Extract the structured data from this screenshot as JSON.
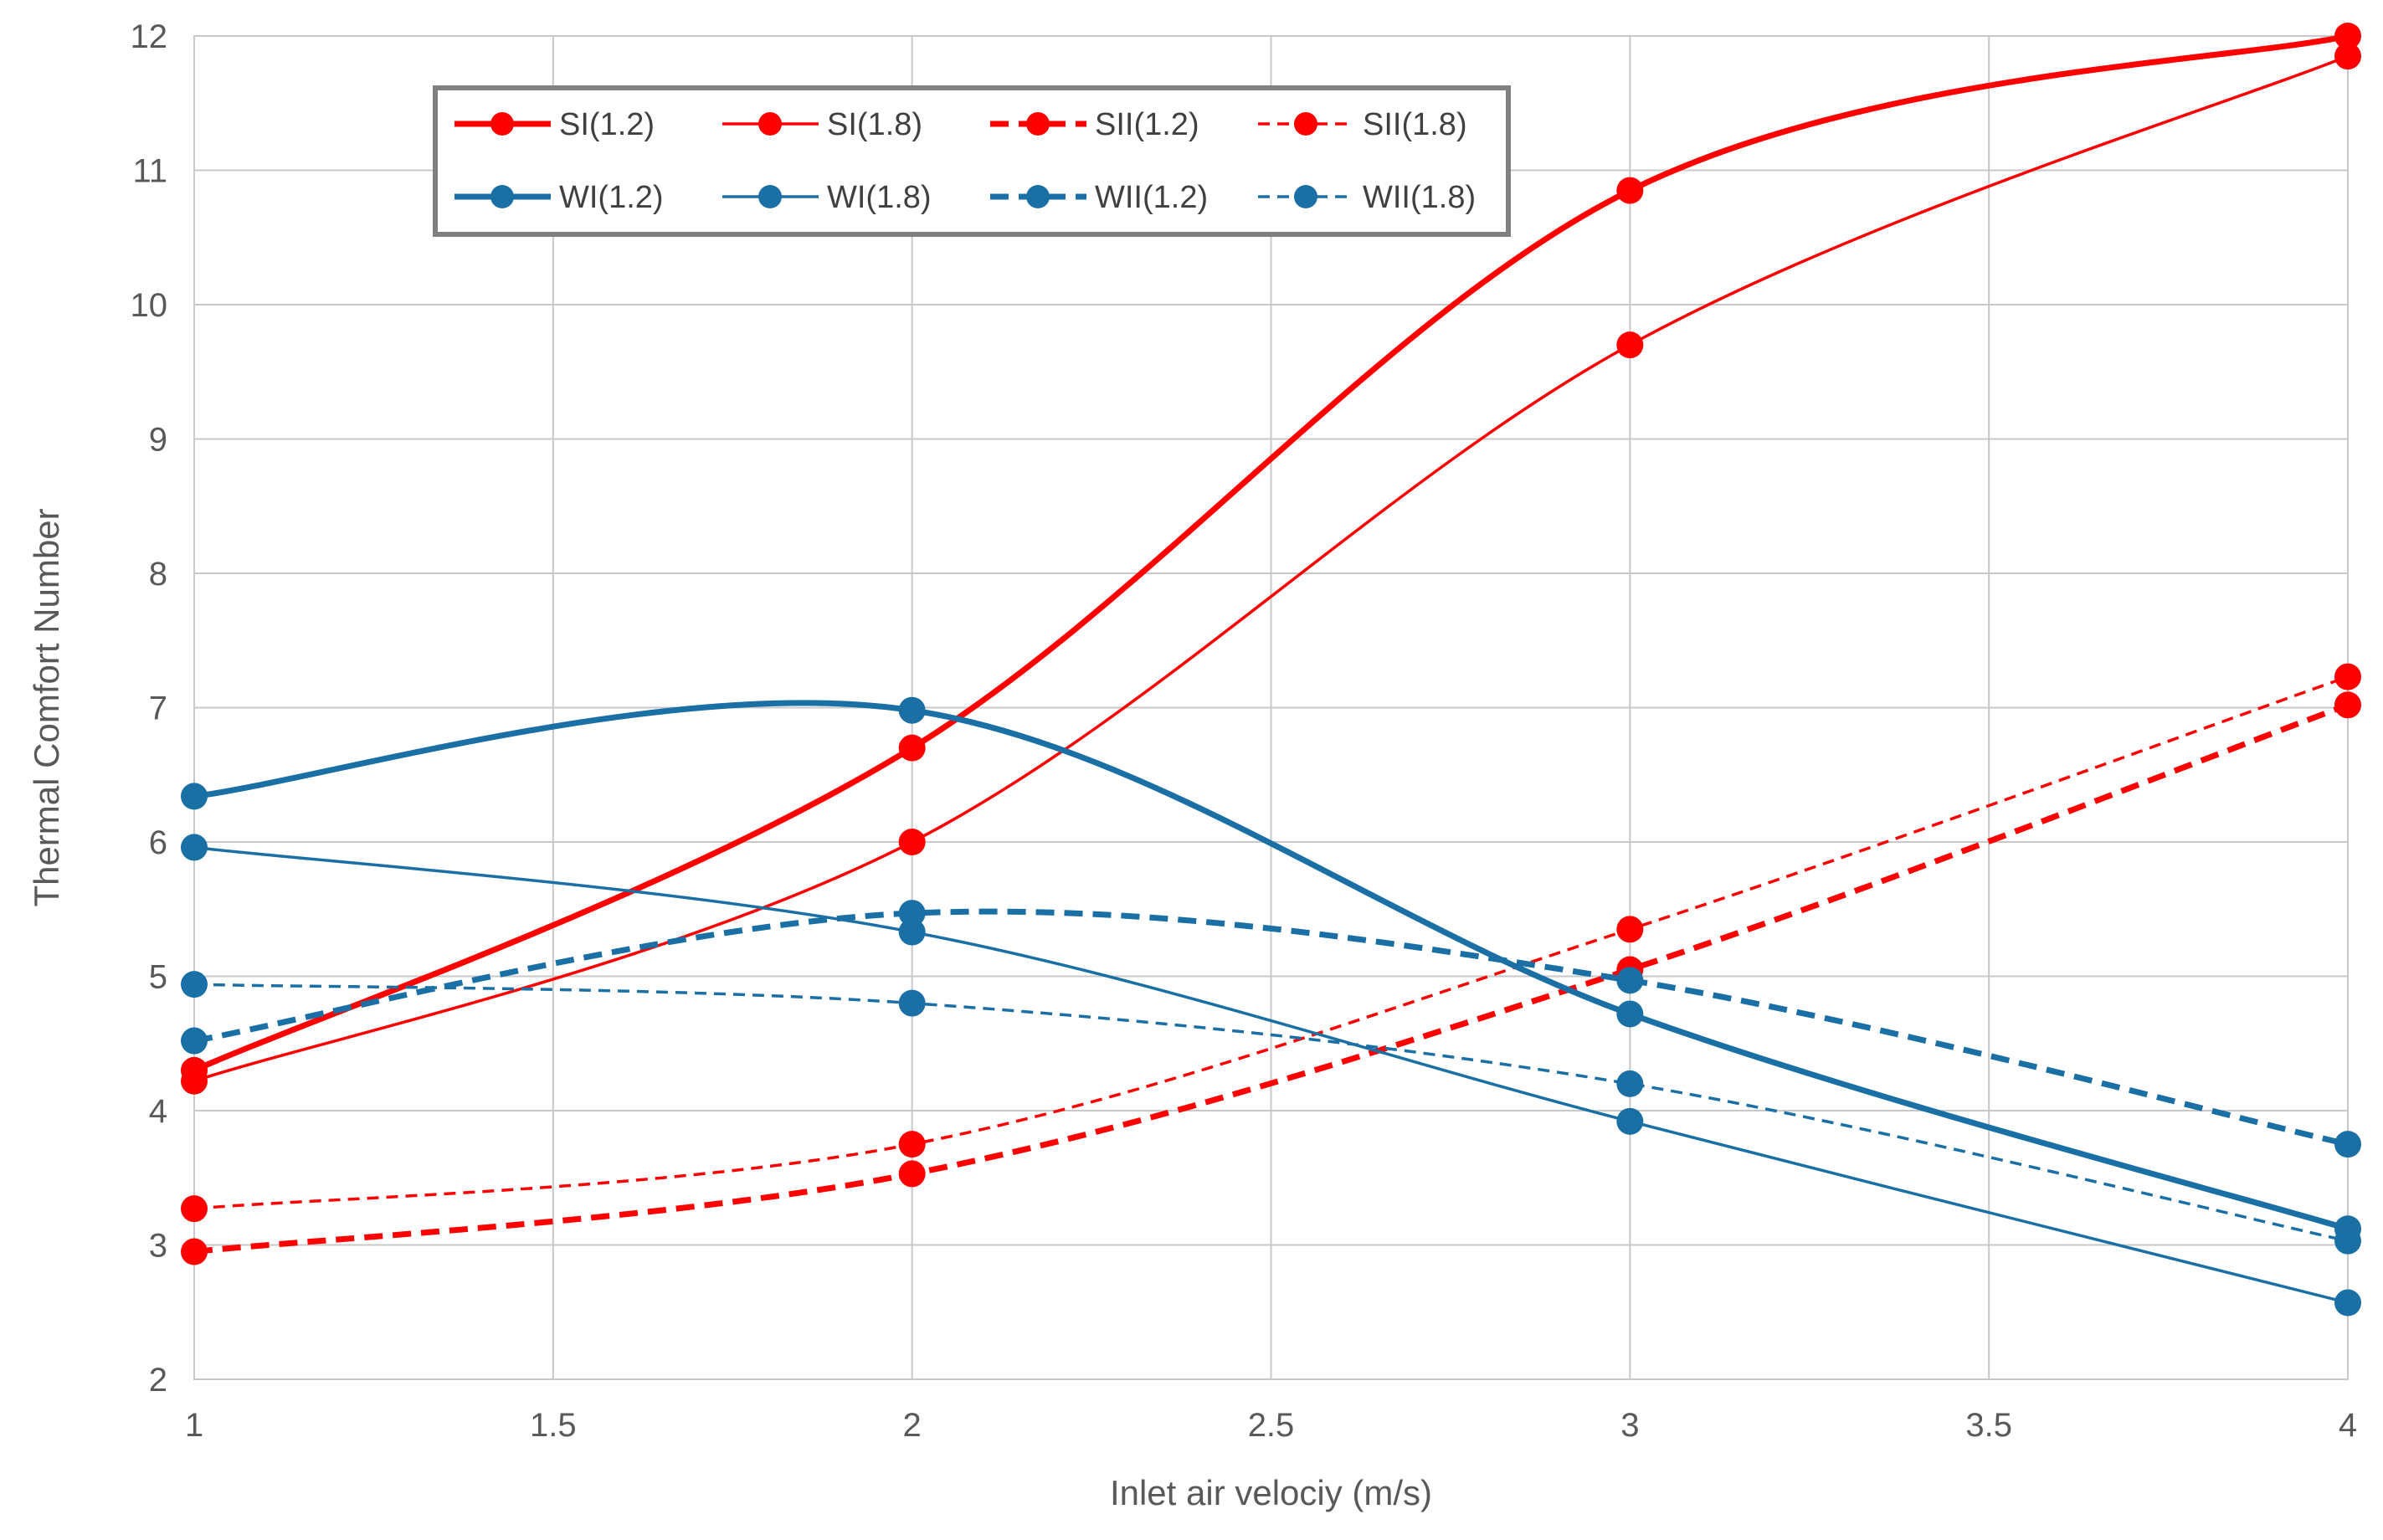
{
  "chart_data": {
    "type": "line",
    "title": "",
    "xlabel": "Inlet air velociy (m/s)",
    "ylabel": "Thermal Comfort Number",
    "x": [
      1,
      2,
      3,
      4
    ],
    "xlim": [
      1,
      4
    ],
    "ylim": [
      2,
      12
    ],
    "xticks": [
      "1",
      "1.5",
      "2",
      "2.5",
      "3",
      "3.5",
      "4"
    ],
    "yticks": [
      "2",
      "3",
      "4",
      "5",
      "6",
      "7",
      "8",
      "9",
      "10",
      "11",
      "12"
    ],
    "grid": true,
    "legend_position": "top-left",
    "series": [
      {
        "name": "SI(1.2)",
        "values": [
          4.3,
          6.7,
          10.85,
          12.0
        ],
        "color": "#ff0000",
        "width": "thick",
        "dash": "solid"
      },
      {
        "name": "SI(1.8)",
        "values": [
          4.22,
          6.0,
          9.7,
          11.85
        ],
        "color": "#ff0000",
        "width": "thin",
        "dash": "solid"
      },
      {
        "name": "SII(1.2)",
        "values": [
          2.95,
          3.53,
          5.05,
          7.02
        ],
        "color": "#ff0000",
        "width": "thick",
        "dash": "dashed"
      },
      {
        "name": "SII(1.8)",
        "values": [
          3.27,
          3.75,
          5.35,
          7.23
        ],
        "color": "#ff0000",
        "width": "thin",
        "dash": "dashed"
      },
      {
        "name": "WI(1.2)",
        "values": [
          6.34,
          6.98,
          4.72,
          3.12
        ],
        "color": "#1a6fa5",
        "width": "thick",
        "dash": "solid"
      },
      {
        "name": "WI(1.8)",
        "values": [
          5.96,
          5.33,
          3.92,
          2.57
        ],
        "color": "#1a6fa5",
        "width": "thin",
        "dash": "solid"
      },
      {
        "name": "WII(1.2)",
        "values": [
          4.52,
          5.47,
          4.97,
          3.75
        ],
        "color": "#1a6fa5",
        "width": "thick",
        "dash": "dashed"
      },
      {
        "name": "WII(1.8)",
        "values": [
          4.94,
          4.8,
          4.2,
          3.03
        ],
        "color": "#1a6fa5",
        "width": "thin",
        "dash": "dashed"
      }
    ]
  }
}
